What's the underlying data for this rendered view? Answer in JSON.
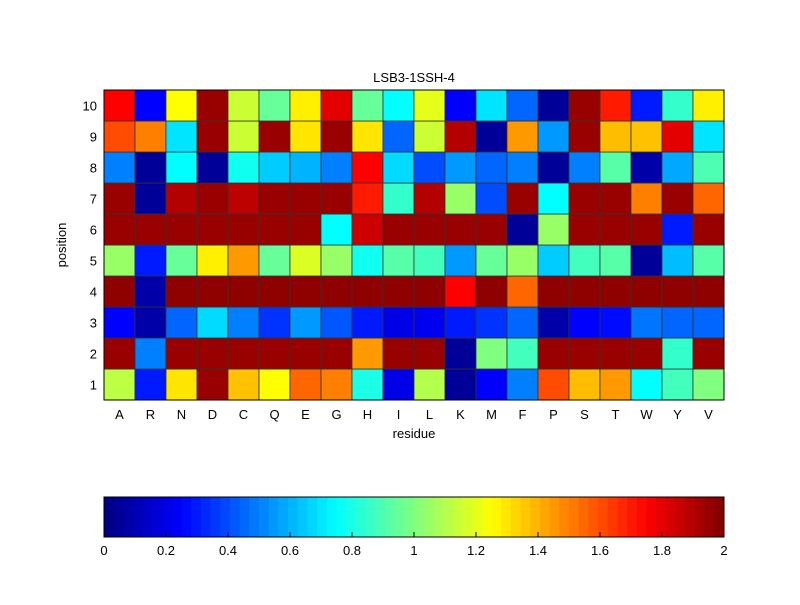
{
  "chart_data": {
    "type": "heatmap",
    "title": "LSB3-1SSH-4",
    "xlabel": "residue",
    "ylabel": "position",
    "x_categories": [
      "A",
      "R",
      "N",
      "D",
      "C",
      "Q",
      "E",
      "G",
      "H",
      "I",
      "L",
      "K",
      "M",
      "F",
      "P",
      "S",
      "T",
      "W",
      "Y",
      "V"
    ],
    "y_categories": [
      "1",
      "2",
      "3",
      "4",
      "5",
      "6",
      "7",
      "8",
      "9",
      "10"
    ],
    "colormap": "jet",
    "clim": [
      0,
      2
    ],
    "colorbar": {
      "placement": "bottom",
      "ticks": [
        "0",
        "0.2",
        "0.4",
        "0.6",
        "0.8",
        "1",
        "1.2",
        "1.4",
        "1.6",
        "1.8",
        "2"
      ]
    },
    "values_by_position": {
      "1": [
        1.12,
        0.3,
        1.3,
        1.95,
        1.37,
        1.25,
        1.55,
        1.5,
        0.8,
        0.2,
        1.1,
        0.05,
        0.25,
        0.5,
        1.6,
        1.38,
        1.45,
        0.75,
        0.88,
        1.0
      ],
      "2": [
        1.95,
        0.5,
        1.95,
        1.95,
        1.95,
        1.95,
        1.95,
        1.95,
        1.45,
        1.95,
        1.95,
        0.05,
        1.0,
        0.88,
        1.95,
        1.95,
        1.95,
        1.95,
        0.85,
        1.95
      ],
      "3": [
        0.25,
        0.08,
        0.45,
        0.68,
        0.5,
        0.35,
        0.55,
        0.42,
        0.3,
        0.2,
        0.22,
        0.3,
        0.35,
        0.45,
        0.08,
        0.25,
        0.27,
        0.48,
        0.45,
        0.45
      ],
      "4": [
        1.97,
        0.08,
        1.97,
        1.97,
        1.97,
        1.97,
        1.97,
        1.97,
        1.97,
        1.97,
        1.97,
        1.75,
        1.97,
        1.55,
        1.97,
        1.97,
        1.97,
        1.97,
        1.97,
        1.97
      ],
      "5": [
        1.05,
        0.3,
        0.95,
        1.28,
        1.45,
        0.95,
        1.18,
        1.05,
        0.78,
        0.92,
        0.88,
        0.55,
        0.95,
        1.05,
        0.65,
        0.88,
        0.92,
        0.05,
        0.62,
        0.92
      ],
      "6": [
        1.95,
        1.95,
        1.95,
        1.95,
        1.95,
        1.95,
        1.95,
        0.75,
        1.85,
        1.95,
        1.95,
        1.95,
        1.95,
        0.05,
        1.05,
        1.95,
        1.95,
        1.95,
        0.3,
        1.95
      ],
      "7": [
        1.95,
        0.05,
        1.9,
        1.95,
        1.88,
        1.95,
        1.95,
        1.95,
        1.7,
        0.85,
        1.9,
        1.05,
        0.4,
        1.95,
        0.75,
        1.95,
        1.95,
        1.5,
        1.95,
        1.55
      ],
      "8": [
        0.5,
        0.05,
        0.75,
        0.05,
        0.78,
        0.65,
        0.6,
        0.5,
        1.75,
        0.68,
        0.4,
        0.55,
        0.45,
        0.5,
        0.05,
        0.5,
        0.92,
        0.08,
        0.58,
        0.9
      ],
      "9": [
        1.6,
        1.5,
        0.7,
        1.95,
        1.15,
        1.95,
        1.3,
        1.95,
        1.3,
        0.45,
        1.15,
        1.9,
        0.05,
        1.45,
        0.55,
        1.95,
        1.38,
        1.37,
        1.8,
        0.7
      ],
      "10": [
        1.75,
        0.25,
        1.25,
        1.95,
        1.15,
        0.95,
        1.28,
        1.8,
        0.95,
        0.75,
        1.2,
        0.25,
        0.7,
        0.45,
        0.05,
        1.95,
        1.7,
        0.3,
        0.85,
        1.28
      ]
    }
  }
}
